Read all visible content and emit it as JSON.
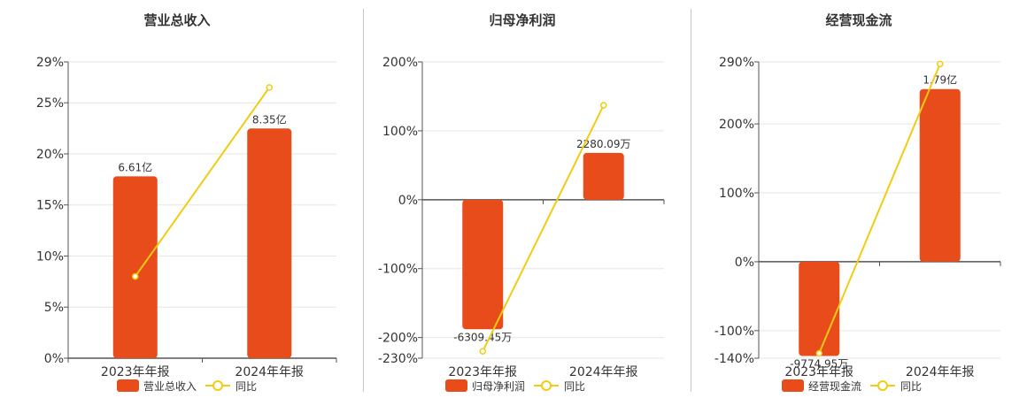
{
  "colors": {
    "bar": "#e84c1a",
    "line": "#f2cc14",
    "axis": "#555555",
    "grid": "#e6e6e6",
    "text": "#333333"
  },
  "chart_data": [
    {
      "type": "bar",
      "title": "营业总收入",
      "categories": [
        "2023年年报",
        "2024年年报"
      ],
      "series": [
        {
          "name": "营业总收入",
          "axis": "value",
          "values": [
            6.61,
            8.35
          ],
          "labels": [
            "6.61亿",
            "8.35亿"
          ]
        },
        {
          "name": "同比",
          "type": "line",
          "axis": "percent",
          "values": [
            8,
            26.5
          ]
        }
      ],
      "yaxis": {
        "ticks": [
          0,
          5,
          10,
          15,
          20,
          25,
          29
        ],
        "tick_labels": [
          "0%",
          "5%",
          "10%",
          "15%",
          "20%",
          "25%",
          "29%"
        ],
        "ylim": [
          0,
          29
        ]
      },
      "bar_value_range": [
        0,
        10.77
      ],
      "grid": true,
      "legend": "bottom"
    },
    {
      "type": "bar",
      "title": "归母净利润",
      "categories": [
        "2023年年报",
        "2024年年报"
      ],
      "series": [
        {
          "name": "归母净利润",
          "axis": "value",
          "values": [
            -6309.45,
            2280.09
          ],
          "labels": [
            "-6309.45万",
            "2280.09万"
          ]
        },
        {
          "name": "同比",
          "type": "line",
          "axis": "percent",
          "values": [
            -220,
            137
          ]
        }
      ],
      "yaxis": {
        "ticks": [
          -230,
          -200,
          -100,
          0,
          100,
          200
        ],
        "tick_labels": [
          "-230%",
          "-200%",
          "-100%",
          "0%",
          "100%",
          "200%"
        ],
        "ylim": [
          -230,
          200
        ]
      },
      "bar_value_range": [
        -7720,
        6713
      ],
      "grid": true,
      "legend": "bottom"
    },
    {
      "type": "bar",
      "title": "经营现金流",
      "categories": [
        "2023年年报",
        "2024年年报"
      ],
      "series": [
        {
          "name": "经营现金流",
          "axis": "value",
          "values": [
            -9774.95,
            17900
          ],
          "labels": [
            "-9774.95万",
            "1.79亿"
          ]
        },
        {
          "name": "同比",
          "type": "line",
          "axis": "percent",
          "values": [
            -133,
            287
          ]
        }
      ],
      "yaxis": {
        "ticks": [
          -140,
          -100,
          0,
          100,
          200,
          290
        ],
        "tick_labels": [
          "-140%",
          "-100%",
          "0%",
          "100%",
          "200%",
          "290%"
        ],
        "ylim": [
          -140,
          290
        ]
      },
      "bar_value_range": [
        -10000,
        20714
      ],
      "grid": true,
      "legend": "bottom"
    }
  ]
}
